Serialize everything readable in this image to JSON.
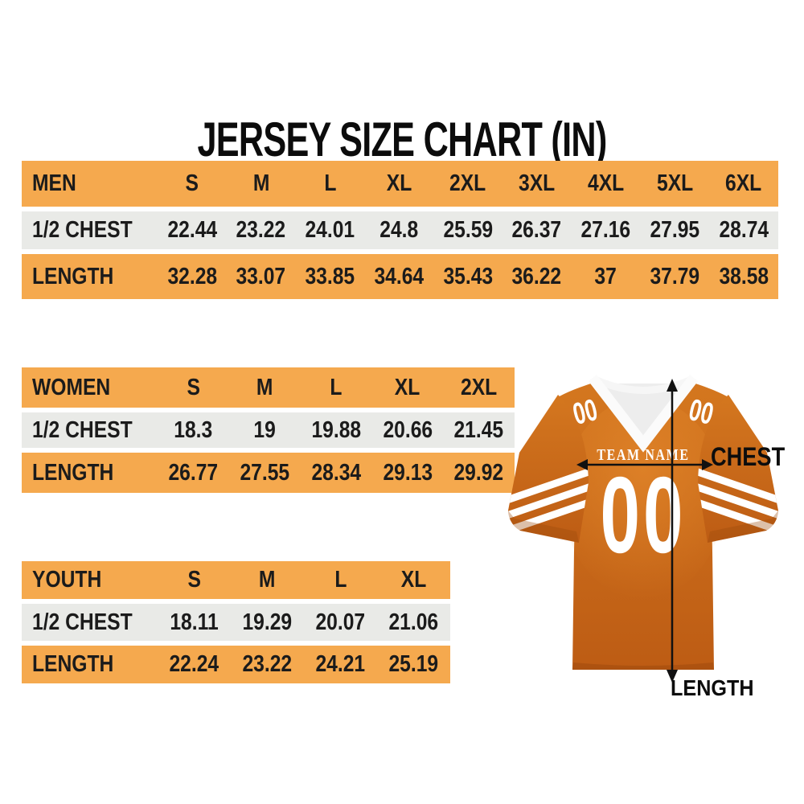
{
  "title": "JERSEY SIZE CHART (IN)",
  "unit": "IN",
  "chart_data": [
    {
      "type": "table",
      "title": "MEN",
      "columns": [
        "MEN",
        "S",
        "M",
        "L",
        "XL",
        "2XL",
        "3XL",
        "4XL",
        "5XL",
        "6XL"
      ],
      "rows": [
        [
          "1/2 CHEST",
          "22.44",
          "23.22",
          "24.01",
          "24.8",
          "25.59",
          "26.37",
          "27.16",
          "27.95",
          "28.74"
        ],
        [
          "LENGTH",
          "32.28",
          "33.07",
          "33.85",
          "34.64",
          "35.43",
          "36.22",
          "37",
          "37.79",
          "38.58"
        ]
      ]
    },
    {
      "type": "table",
      "title": "WOMEN",
      "columns": [
        "WOMEN",
        "S",
        "M",
        "L",
        "XL",
        "2XL"
      ],
      "rows": [
        [
          "1/2 CHEST",
          "18.3",
          "19",
          "19.88",
          "20.66",
          "21.45"
        ],
        [
          "LENGTH",
          "26.77",
          "27.55",
          "28.34",
          "29.13",
          "29.92"
        ]
      ]
    },
    {
      "type": "table",
      "title": "YOUTH",
      "columns": [
        "YOUTH",
        "S",
        "M",
        "L",
        "XL"
      ],
      "rows": [
        [
          "1/2 CHEST",
          "18.11",
          "19.29",
          "20.07",
          "21.06"
        ],
        [
          "LENGTH",
          "22.24",
          "23.22",
          "24.21",
          "25.19"
        ]
      ]
    }
  ],
  "jersey": {
    "team_name": "TEAM NAME",
    "shoulder_number": "00",
    "chest_number": "00",
    "chest_label": "CHEST",
    "length_label": "LENGTH"
  },
  "colors": {
    "row_orange": "#F5A94E",
    "row_gray": "#E9EAE7",
    "text": "#1B1B1B",
    "jersey_orange": "#C9661B",
    "jersey_orange_dark": "#A84D0E",
    "jersey_orange_light": "#DE8128",
    "stripe_white": "#FFFFFF",
    "arrow_black": "#111111"
  }
}
